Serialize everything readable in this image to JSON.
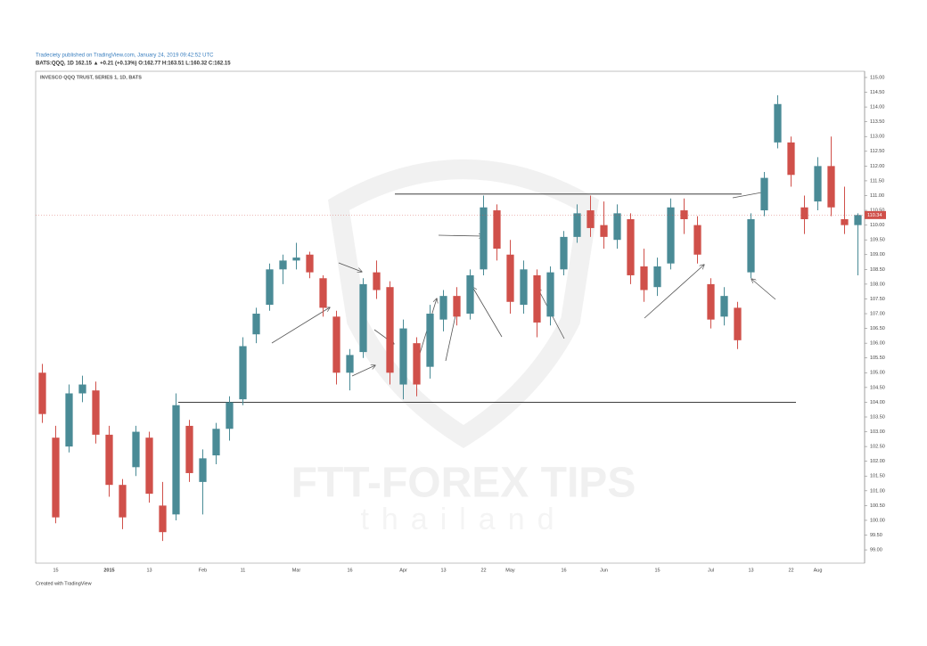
{
  "header": {
    "published": "Tradeciety published on TradingView.com, January 24, 2019 09:42:52 UTC",
    "quote": "BATS:QQQ, 1D  162.15 ▲ +0.21 (+0.13%) O:162.77 H:163.51 L:160.32 C:162.15",
    "footer": "Created with TradingView"
  },
  "watermark": {
    "brand": "FTT-FOREX TIPS",
    "sub": "thailand"
  },
  "chart_data": {
    "type": "candlestick",
    "title": "INVESCO QQQ TRUST, SERIES 1, 1D, BATS",
    "up_color": "#4a8b96",
    "down_color": "#d0504a",
    "categories": [
      null,
      "15",
      null,
      null,
      null,
      "2015",
      null,
      null,
      "13",
      null,
      null,
      null,
      "Feb",
      null,
      null,
      "11",
      null,
      null,
      null,
      "Mar",
      null,
      null,
      null,
      "16",
      null,
      null,
      null,
      "Apr",
      null,
      null,
      "13",
      null,
      null,
      "22",
      null,
      "May",
      null,
      null,
      null,
      "16",
      null,
      null,
      "Jun",
      null,
      null,
      null,
      "15",
      null,
      null,
      null,
      "Jul",
      null,
      null,
      "13",
      null,
      null,
      "22",
      null,
      "Aug",
      null,
      null,
      null
    ],
    "open": [
      105,
      102.8,
      102.5,
      104.3,
      104.4,
      102.9,
      101.2,
      101.8,
      102.8,
      100.5,
      100.2,
      103.2,
      101.3,
      102.2,
      103.1,
      104.1,
      106.3,
      107.3,
      108.5,
      108.8,
      109,
      108.2,
      106.9,
      105,
      105.7,
      108.4,
      107.9,
      104.6,
      106,
      105.2,
      106.8,
      107.6,
      107,
      108.5,
      110.5,
      109,
      107.3,
      108.3,
      106.9,
      108.5,
      109.6,
      110.5,
      110,
      109.5,
      110.2,
      108.6,
      107.9,
      108.7,
      110.5,
      110,
      108,
      106.9,
      107.2,
      108.4,
      110.5,
      112.8,
      112.8,
      110.6,
      110.8,
      112,
      110.2,
      110
    ],
    "high": [
      105.3,
      103.2,
      104.6,
      104.9,
      104.7,
      103.2,
      101.4,
      103.2,
      103,
      101.3,
      104.3,
      103.4,
      102.4,
      103.3,
      104.2,
      106.2,
      107.2,
      108.7,
      109,
      109.4,
      109.1,
      108.3,
      107.1,
      105.8,
      108.2,
      108.8,
      108.1,
      106.8,
      106.2,
      107.3,
      107.8,
      107.9,
      108.5,
      111,
      110.7,
      109.5,
      108.8,
      108.5,
      108.6,
      109.8,
      110.7,
      111,
      110.8,
      110.7,
      110.4,
      109.2,
      108.9,
      110.9,
      110.9,
      110.3,
      108.2,
      107.9,
      107.4,
      110.4,
      111.8,
      114.4,
      113,
      111,
      112.3,
      113,
      111.3,
      110.4
    ],
    "low": [
      103.3,
      99.9,
      102.3,
      104,
      102.6,
      100.8,
      99.7,
      101.5,
      100.6,
      99.3,
      100,
      101.3,
      100.2,
      101.9,
      102.7,
      103.9,
      106,
      107.1,
      108,
      108.5,
      108.2,
      106.9,
      104.6,
      104.4,
      105.5,
      107.5,
      104.6,
      104.1,
      104.2,
      104.8,
      106.4,
      106.6,
      106.8,
      108.3,
      108.8,
      107,
      107,
      106.2,
      106.6,
      108.3,
      109.4,
      109.6,
      109.2,
      109.2,
      108,
      107.4,
      107.6,
      108.5,
      109.7,
      108.7,
      106.5,
      106.6,
      105.8,
      108.2,
      110.3,
      112.6,
      111.3,
      109.7,
      110.5,
      110.3,
      109.7,
      108.3
    ],
    "close": [
      103.6,
      100.1,
      104.3,
      104.6,
      102.9,
      101.2,
      100.1,
      103,
      100.9,
      99.6,
      103.9,
      101.6,
      102.1,
      103.1,
      104,
      105.9,
      107,
      108.5,
      108.8,
      108.9,
      108.4,
      107.2,
      105,
      105.6,
      108,
      107.8,
      105,
      106.5,
      104.6,
      107,
      107.6,
      106.9,
      108.3,
      110.6,
      109.2,
      107.4,
      108.5,
      106.7,
      108.4,
      109.6,
      110.4,
      109.9,
      109.6,
      110.4,
      108.3,
      107.8,
      108.6,
      110.6,
      110.2,
      109,
      106.8,
      107.6,
      106.1,
      110.2,
      111.6,
      114.1,
      111.7,
      110.2,
      112,
      110.6,
      110,
      110.34
    ],
    "last_price": {
      "value": 110.34,
      "label": "110.34"
    },
    "levels": [
      111.05,
      104.0
    ],
    "ylim": [
      98.55,
      115.21
    ],
    "yticks": [
      {
        "value": 115,
        "label": "115.00"
      },
      {
        "value": 114.5,
        "label": "114.50"
      },
      {
        "value": 114,
        "label": "114.00"
      },
      {
        "value": 113.5,
        "label": "113.50"
      },
      {
        "value": 113,
        "label": "113.00"
      },
      {
        "value": 112.5,
        "label": "112.50"
      },
      {
        "value": 112,
        "label": "112.00"
      },
      {
        "value": 111.5,
        "label": "111.50"
      },
      {
        "value": 111,
        "label": "111.00"
      },
      {
        "value": 110.5,
        "label": "110.50"
      },
      {
        "value": 110,
        "label": "110.00"
      },
      {
        "value": 109.5,
        "label": "109.50"
      },
      {
        "value": 109,
        "label": "109.00"
      },
      {
        "value": 108.5,
        "label": "108.50"
      },
      {
        "value": 108,
        "label": "108.00"
      },
      {
        "value": 107.5,
        "label": "107.50"
      },
      {
        "value": 107,
        "label": "107.00"
      },
      {
        "value": 106.5,
        "label": "106.50"
      },
      {
        "value": 106,
        "label": "106.00"
      },
      {
        "value": 105.5,
        "label": "105.50"
      },
      {
        "value": 105,
        "label": "105.00"
      },
      {
        "value": 104.5,
        "label": "104.50"
      },
      {
        "value": 104,
        "label": "104.00"
      },
      {
        "value": 103.5,
        "label": "103.50"
      },
      {
        "value": 103,
        "label": "103.00"
      },
      {
        "value": 102.5,
        "label": "102.50"
      },
      {
        "value": 102,
        "label": "102.00"
      },
      {
        "value": 101.5,
        "label": "101.50"
      },
      {
        "value": 101,
        "label": "101.00"
      },
      {
        "value": 100.5,
        "label": "100.50"
      },
      {
        "value": 100,
        "label": "100.00"
      },
      {
        "value": 99.5,
        "label": "99.50"
      },
      {
        "value": 99,
        "label": "99.00"
      }
    ]
  }
}
